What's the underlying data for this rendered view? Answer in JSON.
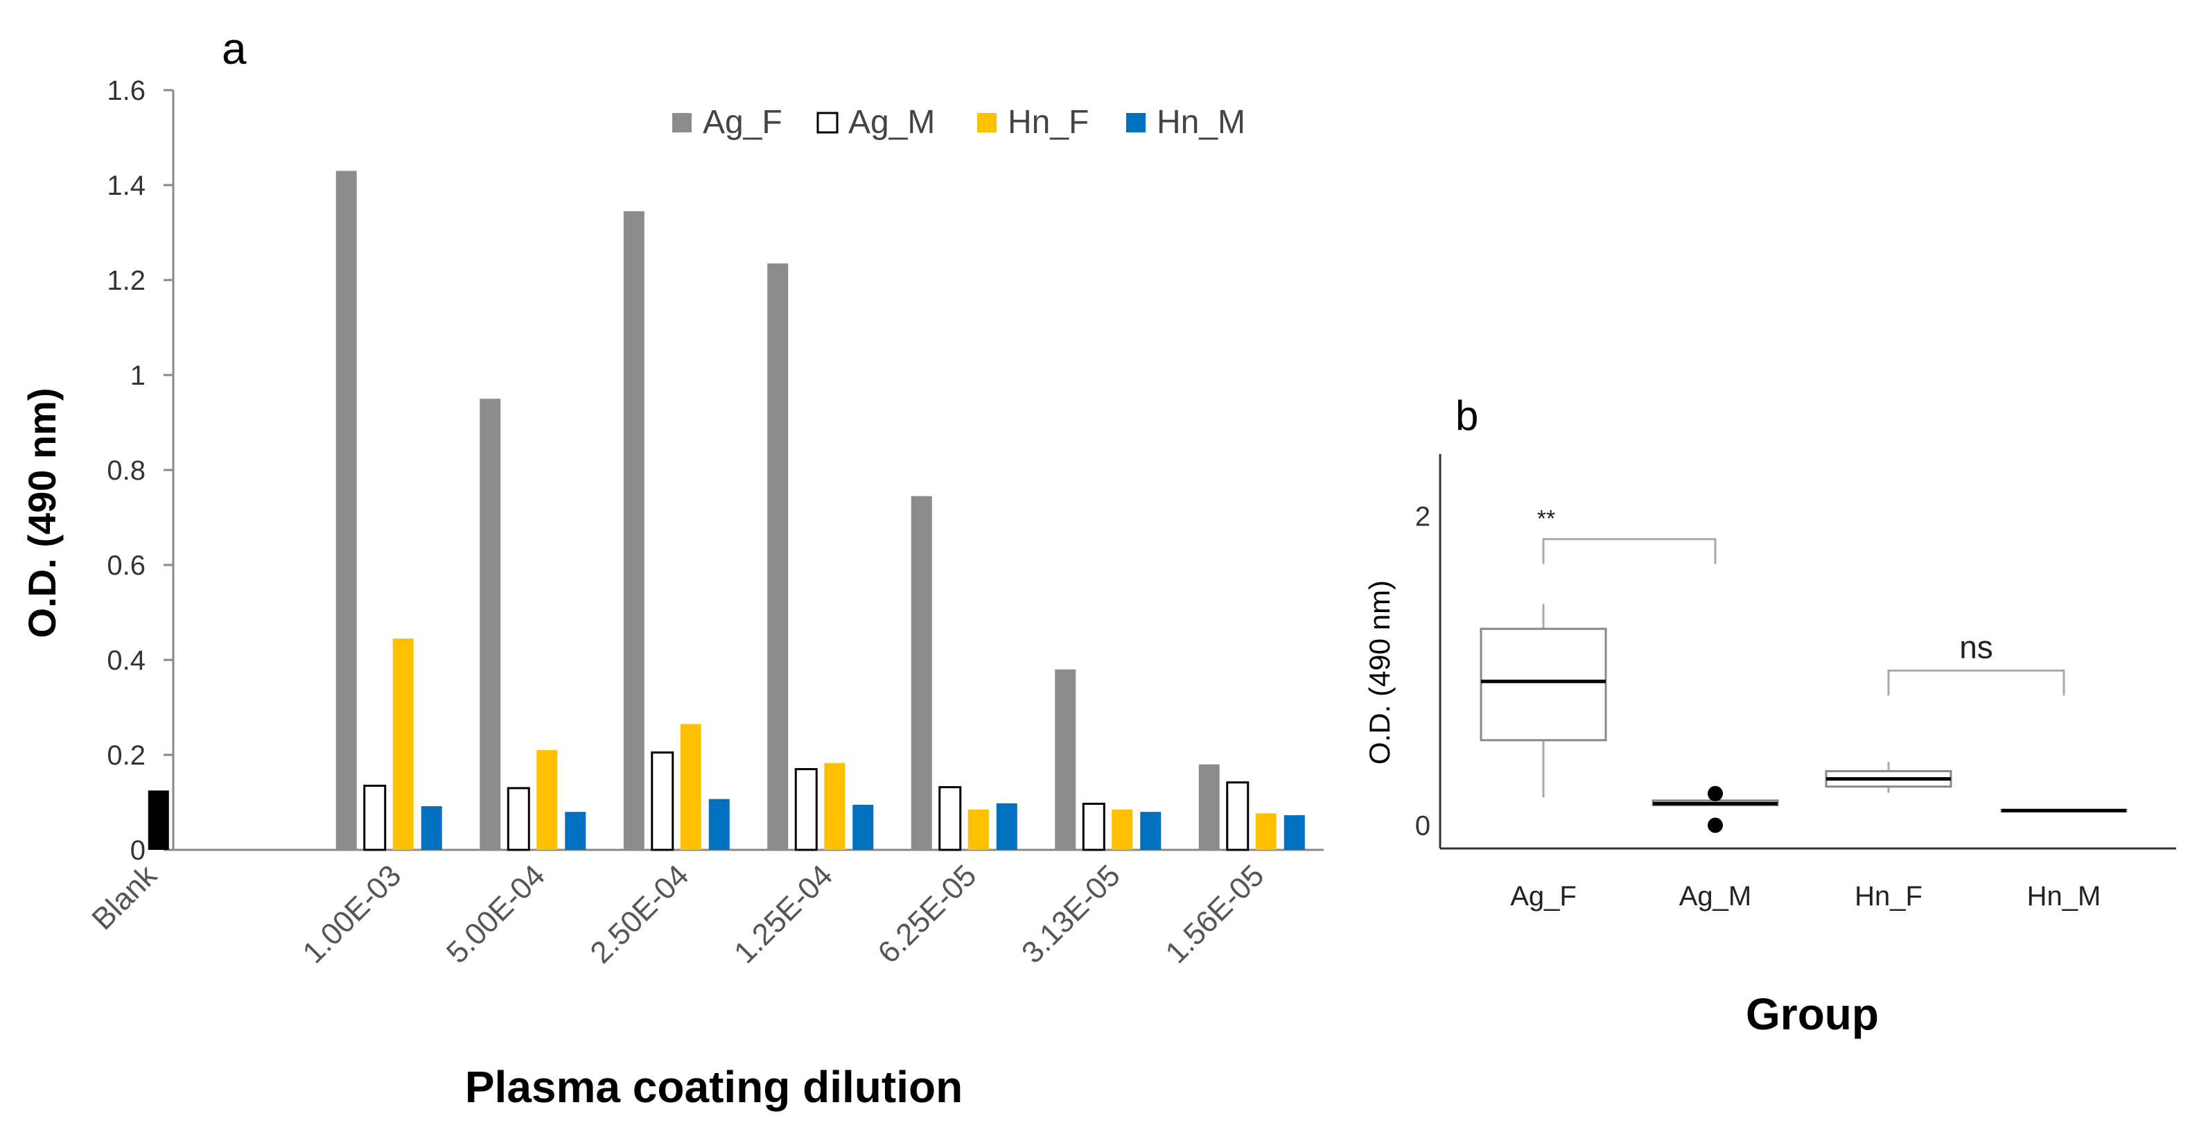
{
  "chart_data": [
    {
      "type": "bar",
      "panel_label": "a",
      "title": "",
      "xlabel": "Plasma coating dilution",
      "ylabel": "O.D. (490 nm)",
      "ylim": [
        0,
        1.6
      ],
      "yticks": [
        "0",
        "0.2",
        "0.4",
        "0.6",
        "0.8",
        "1",
        "1.2",
        "1.4",
        "1.6"
      ],
      "ytick_values": [
        0,
        0.2,
        0.4,
        0.6,
        0.8,
        1,
        1.2,
        1.4,
        1.6
      ],
      "grid": false,
      "legend_position": "top-right",
      "categories": [
        "1.00E-03",
        "5.00E-04",
        "2.50E-04",
        "1.25E-04",
        "6.25E-05",
        "3.13E-05",
        "1.56E-05"
      ],
      "blank": {
        "label": "Blank",
        "value": 0.125,
        "color": "#000000"
      },
      "series": [
        {
          "name": "Ag_F",
          "color": "#8c8c8c",
          "values": [
            1.43,
            0.95,
            1.345,
            1.235,
            0.745,
            0.38,
            0.18
          ]
        },
        {
          "name": "Ag_M",
          "color": "#ffffff",
          "values": [
            0.135,
            0.13,
            0.205,
            0.17,
            0.132,
            0.097,
            0.142
          ]
        },
        {
          "name": "Hn_F",
          "color": "#ffc000",
          "values": [
            0.445,
            0.21,
            0.265,
            0.183,
            0.085,
            0.085,
            0.077
          ]
        },
        {
          "name": "Hn_M",
          "color": "#0070c0",
          "values": [
            0.092,
            0.08,
            0.107,
            0.095,
            0.098,
            0.08,
            0.073
          ]
        }
      ]
    },
    {
      "type": "box",
      "panel_label": "b",
      "title": "",
      "xlabel": "Group",
      "ylabel": "O.D. (490 nm)",
      "ylim": [
        -0.15,
        2.4
      ],
      "yticks": [
        "0",
        "2"
      ],
      "ytick_values": [
        0,
        2
      ],
      "grid": false,
      "groups": [
        {
          "name": "Ag_F",
          "whisker_low": 0.18,
          "q1": 0.55,
          "median": 0.93,
          "q3": 1.27,
          "whisker_high": 1.43,
          "outliers": []
        },
        {
          "name": "Ag_M",
          "whisker_low": 0.13,
          "q1": 0.13,
          "median": 0.14,
          "q3": 0.16,
          "whisker_high": 0.17,
          "outliers": [
            0.0,
            0.205
          ]
        },
        {
          "name": "Hn_F",
          "whisker_low": 0.21,
          "q1": 0.25,
          "median": 0.3,
          "q3": 0.35,
          "whisker_high": 0.41,
          "outliers": []
        },
        {
          "name": "Hn_M",
          "whisker_low": 0.085,
          "q1": 0.09,
          "median": 0.095,
          "q3": 0.1,
          "whisker_high": 0.105,
          "outliers": []
        }
      ],
      "annotations": [
        {
          "text": "**",
          "from": "Ag_F",
          "to": "Ag_M",
          "y": 1.85
        },
        {
          "text": "ns",
          "from": "Hn_F",
          "to": "Hn_M",
          "y": 1.0
        }
      ]
    }
  ]
}
